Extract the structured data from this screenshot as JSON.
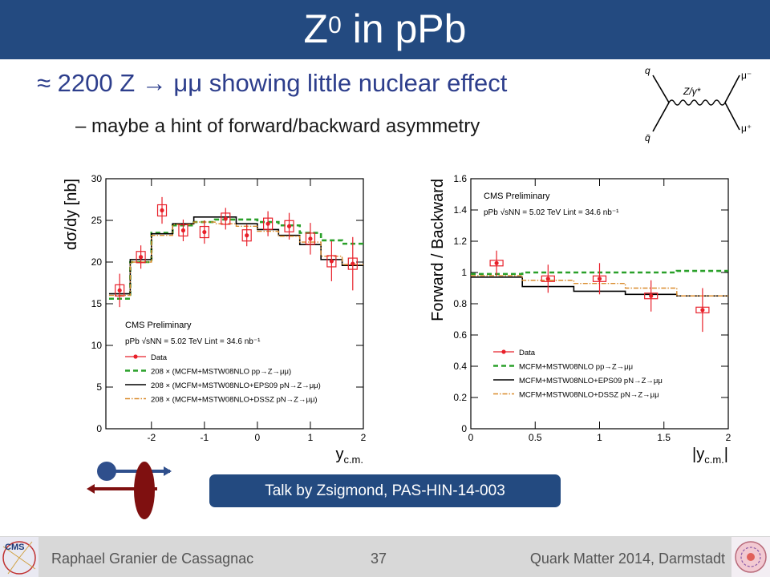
{
  "slide": {
    "title_main": "Z",
    "title_sup": "0",
    "title_rest": " in pPb",
    "bullet_1": "≈ 2200 Z → μμ showing little nuclear effect",
    "bullet_2": "– maybe a hint of forward/backward asymmetry",
    "talk_box": "Talk by Zsigmond, PAS-HIN-14-003"
  },
  "feynman": {
    "q": "q",
    "qbar": "q̄",
    "boson": "Z/γ*",
    "mu_minus": "μ⁻",
    "mu_plus": "μ⁺"
  },
  "footer": {
    "author": "Raphael Granier de Cassagnac",
    "page": "37",
    "event": "Quark Matter 2014, Darmstadt",
    "logo_text": "CMS"
  },
  "colors": {
    "title_bg": "#234a80",
    "data": "#e8202a",
    "pp": "#2aa02a",
    "eps09": "#000000",
    "dssz": "#d98a2a",
    "arrow_blue": "#2f4f8c",
    "arrow_red": "#7f1010"
  },
  "chart_data": [
    {
      "type": "line",
      "xlabel": "y_c.m.",
      "ylabel": "dσ/dy [nb]",
      "xlim": [
        -2.86,
        2.0
      ],
      "ylim": [
        0,
        30
      ],
      "xticks": [
        "-2",
        "-1",
        "0",
        "1",
        "2"
      ],
      "yticks": [
        "0",
        "5",
        "10",
        "15",
        "20",
        "25",
        "30"
      ],
      "annotations": [
        "CMS Preliminary",
        "pPb √sNN = 5.02 TeV Lint = 34.6 nb⁻¹"
      ],
      "legend": [
        "Data",
        "208 × (MCFM+MSTW08NLO pp→Z→μμ)",
        "208 × (MCFM+MSTW08NLO+EPS09 pN→Z→μμ)",
        "208 × (MCFM+MSTW08NLO+DSSZ pN→Z→μμ)"
      ],
      "legend_position": "bottom-left",
      "data": {
        "x": [
          -2.6,
          -2.2,
          -1.8,
          -1.4,
          -1.0,
          -0.6,
          -0.2,
          0.2,
          0.6,
          1.0,
          1.4,
          1.8
        ],
        "y": [
          16.6,
          20.6,
          26.2,
          23.8,
          23.6,
          25.2,
          23.2,
          24.6,
          24.3,
          22.8,
          20.1,
          19.8
        ],
        "yerr": [
          2.0,
          1.4,
          1.6,
          1.3,
          1.4,
          1.3,
          1.3,
          1.5,
          1.6,
          1.9,
          2.4,
          3.2
        ]
      },
      "bin_edges": [
        -2.8,
        -2.4,
        -2.0,
        -1.6,
        -1.2,
        -0.8,
        -0.4,
        0.0,
        0.4,
        0.8,
        1.2,
        1.6,
        2.0
      ],
      "series": [
        {
          "name": "208 × (MCFM+MSTW08NLO pp→Z→μμ)",
          "values": [
            15.6,
            20.0,
            23.5,
            24.4,
            24.8,
            25.1,
            25.1,
            24.8,
            24.4,
            23.5,
            22.6,
            22.2
          ]
        },
        {
          "name": "208 × (MCFM+MSTW08NLO+EPS09 pN→Z→μμ)",
          "values": [
            16.2,
            20.3,
            23.4,
            24.6,
            25.4,
            25.4,
            24.6,
            23.9,
            23.2,
            22.1,
            20.3,
            19.6
          ]
        },
        {
          "name": "208 × (MCFM+MSTW08NLO+DSSZ pN→Z→μμ)",
          "values": [
            16.0,
            20.0,
            23.2,
            24.5,
            24.8,
            24.6,
            24.3,
            23.7,
            23.1,
            22.4,
            20.7,
            19.7
          ]
        }
      ]
    },
    {
      "type": "line",
      "xlabel": "|y_c.m.|",
      "ylabel": "Forward / Backward",
      "xlim": [
        0,
        2
      ],
      "ylim": [
        0,
        1.6
      ],
      "xticks": [
        "0",
        "0.5",
        "1",
        "1.5",
        "2"
      ],
      "yticks": [
        "0",
        "0.2",
        "0.4",
        "0.6",
        "0.8",
        "1",
        "1.2",
        "1.4",
        "1.6"
      ],
      "annotations": [
        "CMS Preliminary",
        "pPb √sNN = 5.02 TeV Lint = 34.6 nb⁻¹"
      ],
      "legend": [
        "Data",
        "MCFM+MSTW08NLO pp→Z→μμ",
        "MCFM+MSTW08NLO+EPS09 pN→Z→μμ",
        "MCFM+MSTW08NLO+DSSZ pN→Z→μμ"
      ],
      "legend_position": "bottom-left",
      "data": {
        "x": [
          0.2,
          0.6,
          1.0,
          1.4,
          1.8
        ],
        "y": [
          1.06,
          0.96,
          0.96,
          0.85,
          0.76
        ],
        "yerr": [
          0.08,
          0.09,
          0.1,
          0.1,
          0.14
        ]
      },
      "bin_edges": [
        0,
        0.4,
        0.8,
        1.2,
        1.6,
        2.0
      ],
      "series": [
        {
          "name": "MCFM+MSTW08NLO pp→Z→μμ",
          "values": [
            0.99,
            1.0,
            1.0,
            1.0,
            1.01
          ]
        },
        {
          "name": "MCFM+MSTW08NLO+EPS09 pN→Z→μμ",
          "values": [
            0.97,
            0.91,
            0.88,
            0.86,
            0.85
          ]
        },
        {
          "name": "MCFM+MSTW08NLO+DSSZ pN→Z→μμ",
          "values": [
            0.98,
            0.95,
            0.93,
            0.9,
            0.85
          ]
        }
      ]
    }
  ]
}
